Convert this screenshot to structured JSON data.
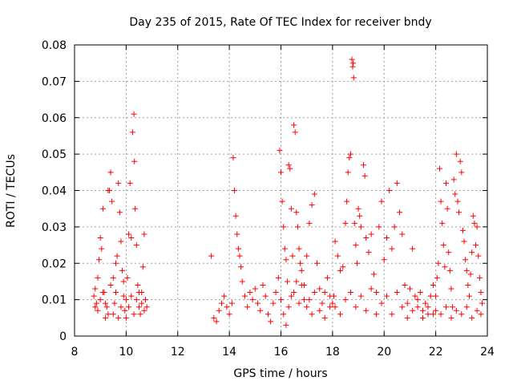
{
  "chart_data": {
    "type": "scatter",
    "title": "Day 235 of 2015, Rate Of TEC Index for receiver bndy",
    "xlabel": "GPS time / hours",
    "ylabel": "ROTI / TECUs",
    "xlim": [
      8,
      24
    ],
    "ylim": [
      0,
      0.08
    ],
    "xticks": [
      8,
      10,
      12,
      14,
      16,
      18,
      20,
      22,
      24
    ],
    "yticks": [
      0,
      0.01,
      0.02,
      0.03,
      0.04,
      0.05,
      0.06,
      0.07,
      0.08
    ],
    "xtick_labels": [
      "8",
      "10",
      "12",
      "14",
      "16",
      "18",
      "20",
      "22",
      "24"
    ],
    "ytick_labels": [
      "0",
      "0.01",
      "0.02",
      "0.03",
      "0.04",
      "0.05",
      "0.06",
      "0.07",
      "0.08"
    ],
    "grid": true,
    "marker": "+",
    "marker_color": "#ff0000",
    "series": [
      {
        "name": "ROTI",
        "points": [
          [
            8.75,
            0.011
          ],
          [
            8.8,
            0.013
          ],
          [
            8.85,
            0.009
          ],
          [
            8.9,
            0.016
          ],
          [
            8.95,
            0.021
          ],
          [
            9.0,
            0.027
          ],
          [
            9.05,
            0.024
          ],
          [
            9.1,
            0.035
          ],
          [
            9.15,
            0.012
          ],
          [
            9.2,
            0.005
          ],
          [
            9.25,
            0.008
          ],
          [
            9.3,
            0.04
          ],
          [
            9.35,
            0.04
          ],
          [
            9.4,
            0.045
          ],
          [
            9.45,
            0.037
          ],
          [
            9.5,
            0.016
          ],
          [
            9.55,
            0.009
          ],
          [
            9.6,
            0.012
          ],
          [
            9.65,
            0.022
          ],
          [
            9.7,
            0.042
          ],
          [
            9.75,
            0.034
          ],
          [
            9.8,
            0.026
          ],
          [
            9.85,
            0.018
          ],
          [
            9.9,
            0.011
          ],
          [
            9.95,
            0.007
          ],
          [
            10.0,
            0.01
          ],
          [
            10.05,
            0.016
          ],
          [
            10.1,
            0.028
          ],
          [
            10.15,
            0.042
          ],
          [
            10.2,
            0.027
          ],
          [
            10.25,
            0.056
          ],
          [
            10.3,
            0.061
          ],
          [
            10.32,
            0.048
          ],
          [
            10.35,
            0.035
          ],
          [
            10.4,
            0.025
          ],
          [
            10.45,
            0.014
          ],
          [
            10.5,
            0.008
          ],
          [
            10.55,
            0.006
          ],
          [
            10.6,
            0.012
          ],
          [
            10.65,
            0.019
          ],
          [
            10.7,
            0.028
          ],
          [
            10.75,
            0.01
          ],
          [
            10.8,
            0.008
          ],
          [
            8.8,
            0.008
          ],
          [
            8.9,
            0.007
          ],
          [
            9.0,
            0.01
          ],
          [
            9.1,
            0.012
          ],
          [
            9.2,
            0.009
          ],
          [
            9.3,
            0.006
          ],
          [
            9.4,
            0.014
          ],
          [
            9.5,
            0.006
          ],
          [
            9.6,
            0.02
          ],
          [
            9.7,
            0.005
          ],
          [
            9.8,
            0.008
          ],
          [
            9.9,
            0.015
          ],
          [
            10.0,
            0.005
          ],
          [
            10.1,
            0.008
          ],
          [
            10.2,
            0.011
          ],
          [
            10.3,
            0.006
          ],
          [
            10.4,
            0.01
          ],
          [
            10.5,
            0.012
          ],
          [
            10.6,
            0.009
          ],
          [
            10.7,
            0.007
          ],
          [
            13.3,
            0.022
          ],
          [
            13.4,
            0.005
          ],
          [
            13.5,
            0.004
          ],
          [
            13.6,
            0.007
          ],
          [
            13.7,
            0.009
          ],
          [
            13.8,
            0.011
          ],
          [
            13.9,
            0.008
          ],
          [
            14.0,
            0.006
          ],
          [
            14.1,
            0.009
          ],
          [
            14.15,
            0.049
          ],
          [
            14.2,
            0.04
          ],
          [
            14.25,
            0.033
          ],
          [
            14.3,
            0.028
          ],
          [
            14.35,
            0.024
          ],
          [
            14.4,
            0.022
          ],
          [
            14.45,
            0.019
          ],
          [
            14.5,
            0.015
          ],
          [
            14.6,
            0.011
          ],
          [
            14.7,
            0.008
          ],
          [
            14.8,
            0.012
          ],
          [
            14.9,
            0.01
          ],
          [
            15.0,
            0.013
          ],
          [
            15.1,
            0.009
          ],
          [
            15.2,
            0.007
          ],
          [
            15.3,
            0.014
          ],
          [
            15.4,
            0.011
          ],
          [
            15.5,
            0.006
          ],
          [
            15.6,
            0.004
          ],
          [
            15.7,
            0.009
          ],
          [
            15.8,
            0.012
          ],
          [
            15.9,
            0.016
          ],
          [
            15.95,
            0.051
          ],
          [
            16.0,
            0.045
          ],
          [
            16.05,
            0.037
          ],
          [
            16.1,
            0.03
          ],
          [
            16.15,
            0.024
          ],
          [
            16.2,
            0.021
          ],
          [
            16.25,
            0.015
          ],
          [
            16.3,
            0.047
          ],
          [
            16.35,
            0.046
          ],
          [
            16.4,
            0.035
          ],
          [
            16.45,
            0.022
          ],
          [
            16.5,
            0.058
          ],
          [
            16.55,
            0.056
          ],
          [
            16.6,
            0.034
          ],
          [
            16.65,
            0.03
          ],
          [
            16.7,
            0.024
          ],
          [
            16.75,
            0.02
          ],
          [
            16.8,
            0.014
          ],
          [
            16.9,
            0.01
          ],
          [
            17.0,
            0.022
          ],
          [
            17.1,
            0.031
          ],
          [
            17.2,
            0.036
          ],
          [
            17.3,
            0.039
          ],
          [
            17.4,
            0.02
          ],
          [
            17.5,
            0.013
          ],
          [
            17.6,
            0.009
          ],
          [
            17.7,
            0.012
          ],
          [
            17.8,
            0.016
          ],
          [
            17.9,
            0.011
          ],
          [
            18.0,
            0.009
          ],
          [
            16.0,
            0.01
          ],
          [
            16.1,
            0.006
          ],
          [
            16.2,
            0.003
          ],
          [
            16.3,
            0.008
          ],
          [
            16.4,
            0.011
          ],
          [
            16.5,
            0.012
          ],
          [
            16.6,
            0.015
          ],
          [
            16.7,
            0.009
          ],
          [
            16.8,
            0.018
          ],
          [
            16.9,
            0.014
          ],
          [
            17.0,
            0.008
          ],
          [
            17.1,
            0.01
          ],
          [
            17.2,
            0.006
          ],
          [
            17.3,
            0.012
          ],
          [
            17.5,
            0.007
          ],
          [
            17.7,
            0.005
          ],
          [
            17.9,
            0.008
          ],
          [
            18.05,
            0.011
          ],
          [
            18.1,
            0.026
          ],
          [
            18.2,
            0.022
          ],
          [
            18.3,
            0.018
          ],
          [
            18.4,
            0.019
          ],
          [
            18.5,
            0.031
          ],
          [
            18.55,
            0.037
          ],
          [
            18.6,
            0.045
          ],
          [
            18.65,
            0.049
          ],
          [
            18.7,
            0.05
          ],
          [
            18.75,
            0.076
          ],
          [
            18.78,
            0.074
          ],
          [
            18.8,
            0.075
          ],
          [
            18.82,
            0.071
          ],
          [
            18.85,
            0.031
          ],
          [
            18.9,
            0.025
          ],
          [
            18.95,
            0.02
          ],
          [
            19.0,
            0.035
          ],
          [
            19.05,
            0.033
          ],
          [
            19.1,
            0.03
          ],
          [
            19.2,
            0.047
          ],
          [
            19.25,
            0.044
          ],
          [
            19.3,
            0.027
          ],
          [
            19.4,
            0.023
          ],
          [
            19.5,
            0.028
          ],
          [
            19.6,
            0.017
          ],
          [
            19.7,
            0.012
          ],
          [
            19.8,
            0.03
          ],
          [
            19.9,
            0.037
          ],
          [
            20.0,
            0.021
          ],
          [
            20.1,
            0.027
          ],
          [
            20.2,
            0.04
          ],
          [
            20.3,
            0.024
          ],
          [
            20.4,
            0.03
          ],
          [
            20.5,
            0.042
          ],
          [
            20.6,
            0.034
          ],
          [
            20.7,
            0.028
          ],
          [
            20.8,
            0.014
          ],
          [
            20.9,
            0.009
          ],
          [
            21.0,
            0.013
          ],
          [
            21.1,
            0.024
          ],
          [
            21.2,
            0.011
          ],
          [
            21.3,
            0.008
          ],
          [
            21.4,
            0.012
          ],
          [
            21.5,
            0.007
          ],
          [
            21.6,
            0.009
          ],
          [
            21.7,
            0.006
          ],
          [
            21.8,
            0.011
          ],
          [
            21.9,
            0.014
          ],
          [
            18.1,
            0.008
          ],
          [
            18.3,
            0.006
          ],
          [
            18.5,
            0.01
          ],
          [
            18.7,
            0.012
          ],
          [
            18.9,
            0.008
          ],
          [
            19.1,
            0.011
          ],
          [
            19.3,
            0.007
          ],
          [
            19.5,
            0.013
          ],
          [
            19.7,
            0.006
          ],
          [
            19.9,
            0.009
          ],
          [
            20.1,
            0.011
          ],
          [
            20.3,
            0.006
          ],
          [
            20.5,
            0.012
          ],
          [
            20.7,
            0.008
          ],
          [
            20.9,
            0.005
          ],
          [
            21.1,
            0.007
          ],
          [
            21.3,
            0.01
          ],
          [
            21.5,
            0.005
          ],
          [
            21.7,
            0.008
          ],
          [
            21.9,
            0.006
          ],
          [
            22.0,
            0.011
          ],
          [
            22.05,
            0.016
          ],
          [
            22.1,
            0.02
          ],
          [
            22.15,
            0.046
          ],
          [
            22.2,
            0.037
          ],
          [
            22.25,
            0.031
          ],
          [
            22.3,
            0.025
          ],
          [
            22.35,
            0.019
          ],
          [
            22.4,
            0.042
          ],
          [
            22.45,
            0.035
          ],
          [
            22.5,
            0.023
          ],
          [
            22.55,
            0.018
          ],
          [
            22.6,
            0.013
          ],
          [
            22.65,
            0.008
          ],
          [
            22.7,
            0.043
          ],
          [
            22.75,
            0.039
          ],
          [
            22.8,
            0.05
          ],
          [
            22.85,
            0.037
          ],
          [
            22.9,
            0.034
          ],
          [
            22.95,
            0.048
          ],
          [
            23.0,
            0.045
          ],
          [
            23.05,
            0.029
          ],
          [
            23.1,
            0.026
          ],
          [
            23.15,
            0.021
          ],
          [
            23.2,
            0.018
          ],
          [
            23.25,
            0.014
          ],
          [
            23.3,
            0.011
          ],
          [
            23.35,
            0.017
          ],
          [
            23.4,
            0.023
          ],
          [
            23.45,
            0.033
          ],
          [
            23.5,
            0.031
          ],
          [
            23.55,
            0.025
          ],
          [
            23.6,
            0.03
          ],
          [
            23.65,
            0.022
          ],
          [
            23.7,
            0.016
          ],
          [
            23.75,
            0.012
          ],
          [
            23.8,
            0.009
          ],
          [
            22.0,
            0.007
          ],
          [
            22.2,
            0.006
          ],
          [
            22.4,
            0.008
          ],
          [
            22.6,
            0.005
          ],
          [
            22.8,
            0.007
          ],
          [
            23.0,
            0.006
          ],
          [
            23.2,
            0.008
          ],
          [
            23.4,
            0.005
          ],
          [
            23.6,
            0.007
          ],
          [
            23.75,
            0.006
          ]
        ]
      }
    ]
  }
}
